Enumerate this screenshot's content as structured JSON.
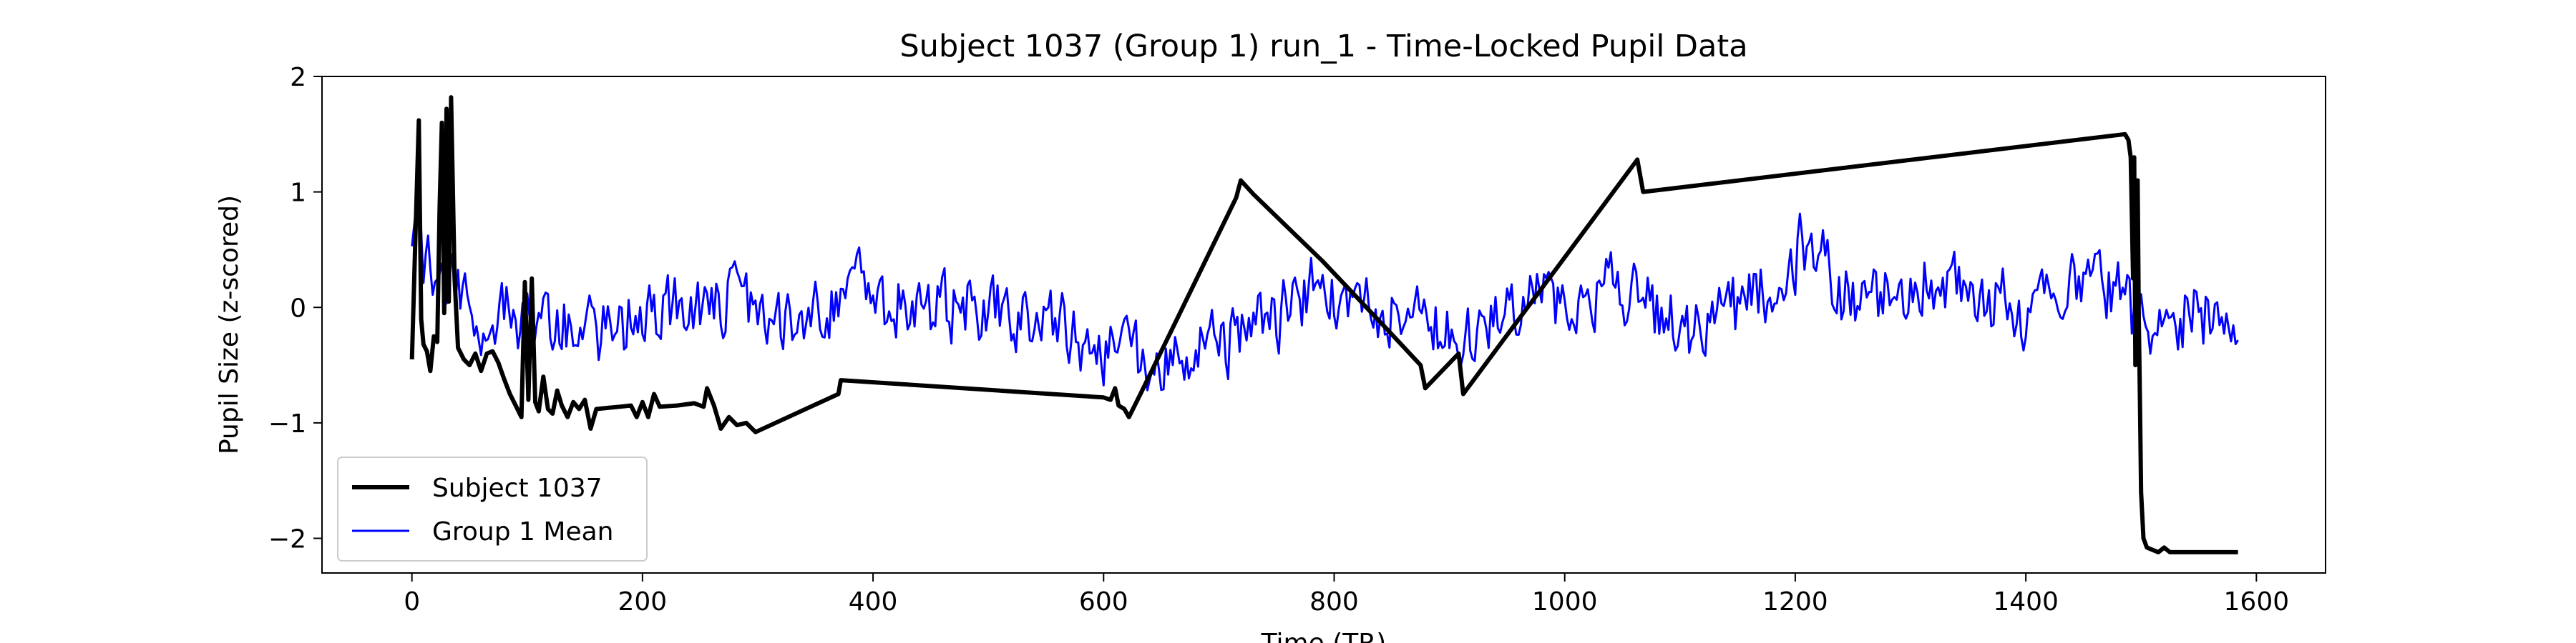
{
  "chart_data": {
    "type": "line",
    "title": "Subject 1037 (Group 1) run_1 - Time-Locked Pupil Data",
    "xlabel": "Time (TR)",
    "ylabel": "Pupil Size (z-scored)",
    "xlim": [
      -78,
      1660
    ],
    "ylim": [
      -2.3,
      2.0
    ],
    "xticks": [
      0,
      200,
      400,
      600,
      800,
      1000,
      1200,
      1400,
      1600
    ],
    "yticks": [
      -2,
      -1,
      0,
      1,
      2
    ],
    "ytick_labels": [
      "−2",
      "−1",
      "0",
      "1",
      "2"
    ],
    "grid": false,
    "legend_position": "lower left",
    "series": [
      {
        "name": "Subject 1037",
        "color": "#000000",
        "style": "thick",
        "points": [
          [
            0,
            -0.45
          ],
          [
            3,
            0.6
          ],
          [
            6,
            1.62
          ],
          [
            8,
            -0.1
          ],
          [
            10,
            -0.32
          ],
          [
            13,
            -0.38
          ],
          [
            16,
            -0.55
          ],
          [
            19,
            -0.25
          ],
          [
            22,
            -0.3
          ],
          [
            24,
            0.85
          ],
          [
            26,
            1.6
          ],
          [
            28,
            -0.05
          ],
          [
            30,
            1.72
          ],
          [
            32,
            0.05
          ],
          [
            34,
            1.82
          ],
          [
            37,
            0.25
          ],
          [
            40,
            -0.35
          ],
          [
            45,
            -0.45
          ],
          [
            50,
            -0.5
          ],
          [
            55,
            -0.4
          ],
          [
            60,
            -0.55
          ],
          [
            65,
            -0.4
          ],
          [
            70,
            -0.38
          ],
          [
            75,
            -0.48
          ],
          [
            80,
            -0.62
          ],
          [
            85,
            -0.75
          ],
          [
            90,
            -0.85
          ],
          [
            95,
            -0.95
          ],
          [
            98,
            0.22
          ],
          [
            101,
            -0.8
          ],
          [
            104,
            0.25
          ],
          [
            107,
            -0.82
          ],
          [
            110,
            -0.9
          ],
          [
            114,
            -0.6
          ],
          [
            118,
            -0.88
          ],
          [
            122,
            -0.92
          ],
          [
            126,
            -0.72
          ],
          [
            130,
            -0.85
          ],
          [
            135,
            -0.95
          ],
          [
            140,
            -0.82
          ],
          [
            145,
            -0.88
          ],
          [
            150,
            -0.8
          ],
          [
            155,
            -1.05
          ],
          [
            160,
            -0.88
          ],
          [
            170,
            -0.87
          ],
          [
            180,
            -0.86
          ],
          [
            190,
            -0.85
          ],
          [
            195,
            -0.95
          ],
          [
            200,
            -0.82
          ],
          [
            205,
            -0.95
          ],
          [
            210,
            -0.75
          ],
          [
            215,
            -0.86
          ],
          [
            230,
            -0.85
          ],
          [
            245,
            -0.83
          ],
          [
            253,
            -0.86
          ],
          [
            256,
            -0.7
          ],
          [
            262,
            -0.85
          ],
          [
            268,
            -1.05
          ],
          [
            275,
            -0.95
          ],
          [
            282,
            -1.02
          ],
          [
            290,
            -1.0
          ],
          [
            298,
            -1.08
          ],
          [
            370,
            -0.75
          ],
          [
            372,
            -0.63
          ],
          [
            600,
            -0.78
          ],
          [
            606,
            -0.8
          ],
          [
            610,
            -0.7
          ],
          [
            613,
            -0.85
          ],
          [
            618,
            -0.88
          ],
          [
            622,
            -0.95
          ],
          [
            632,
            -0.75
          ],
          [
            715,
            0.95
          ],
          [
            719,
            1.1
          ],
          [
            730,
            0.98
          ],
          [
            790,
            0.4
          ],
          [
            845,
            -0.18
          ],
          [
            875,
            -0.5
          ],
          [
            879,
            -0.7
          ],
          [
            908,
            -0.4
          ],
          [
            912,
            -0.75
          ],
          [
            1063,
            1.28
          ],
          [
            1068,
            1.0
          ],
          [
            1486,
            1.5
          ],
          [
            1489,
            1.45
          ],
          [
            1491,
            1.3
          ],
          [
            1493,
            0.25
          ],
          [
            1494,
            1.3
          ],
          [
            1495,
            -0.5
          ],
          [
            1496,
            1.05
          ],
          [
            1497,
            1.1
          ],
          [
            1498,
            -0.1
          ],
          [
            1499,
            -0.8
          ],
          [
            1500,
            -1.6
          ],
          [
            1502,
            -2.0
          ],
          [
            1505,
            -2.08
          ],
          [
            1510,
            -2.1
          ],
          [
            1515,
            -2.12
          ],
          [
            1520,
            -2.08
          ],
          [
            1525,
            -2.12
          ],
          [
            1584,
            -2.12
          ]
        ]
      },
      {
        "name": "Group 1 Mean",
        "color": "#0000ff",
        "style": "thin",
        "generated": true,
        "anchors": [
          [
            0,
            0.8
          ],
          [
            5,
            0.95
          ],
          [
            10,
            0.45
          ],
          [
            20,
            0.15
          ],
          [
            40,
            0.1
          ],
          [
            60,
            -0.05
          ],
          [
            80,
            0.0
          ],
          [
            100,
            -0.1
          ],
          [
            120,
            -0.15
          ],
          [
            140,
            -0.2
          ],
          [
            160,
            -0.2
          ],
          [
            200,
            -0.1
          ],
          [
            240,
            0.0
          ],
          [
            280,
            0.05
          ],
          [
            320,
            -0.05
          ],
          [
            370,
            0.05
          ],
          [
            390,
            0.3
          ],
          [
            410,
            0.05
          ],
          [
            440,
            0.0
          ],
          [
            470,
            0.0
          ],
          [
            500,
            -0.05
          ],
          [
            520,
            -0.1
          ],
          [
            540,
            -0.05
          ],
          [
            560,
            -0.1
          ],
          [
            580,
            -0.25
          ],
          [
            600,
            -0.35
          ],
          [
            620,
            -0.3
          ],
          [
            640,
            -0.45
          ],
          [
            660,
            -0.5
          ],
          [
            680,
            -0.4
          ],
          [
            700,
            -0.3
          ],
          [
            720,
            -0.25
          ],
          [
            750,
            -0.1
          ],
          [
            770,
            0.1
          ],
          [
            790,
            0.2
          ],
          [
            810,
            0.1
          ],
          [
            830,
            0.05
          ],
          [
            850,
            0.0
          ],
          [
            870,
            -0.05
          ],
          [
            890,
            -0.15
          ],
          [
            910,
            -0.2
          ],
          [
            930,
            -0.15
          ],
          [
            950,
            -0.05
          ],
          [
            970,
            0.05
          ],
          [
            990,
            0.0
          ],
          [
            1010,
            0.1
          ],
          [
            1030,
            0.15
          ],
          [
            1050,
            0.15
          ],
          [
            1070,
            0.05
          ],
          [
            1090,
            -0.1
          ],
          [
            1110,
            -0.2
          ],
          [
            1130,
            -0.15
          ],
          [
            1150,
            0.0
          ],
          [
            1170,
            0.1
          ],
          [
            1190,
            0.25
          ],
          [
            1210,
            0.6
          ],
          [
            1225,
            0.4
          ],
          [
            1240,
            0.1
          ],
          [
            1260,
            0.1
          ],
          [
            1290,
            0.2
          ],
          [
            1320,
            0.25
          ],
          [
            1350,
            0.15
          ],
          [
            1380,
            0.05
          ],
          [
            1400,
            -0.05
          ],
          [
            1420,
            0.1
          ],
          [
            1440,
            0.25
          ],
          [
            1460,
            0.15
          ],
          [
            1480,
            0.1
          ],
          [
            1490,
            0.0
          ],
          [
            1500,
            -0.2
          ],
          [
            1510,
            -0.3
          ],
          [
            1530,
            -0.1
          ],
          [
            1550,
            -0.05
          ],
          [
            1570,
            -0.2
          ],
          [
            1584,
            -0.3
          ]
        ]
      }
    ]
  }
}
